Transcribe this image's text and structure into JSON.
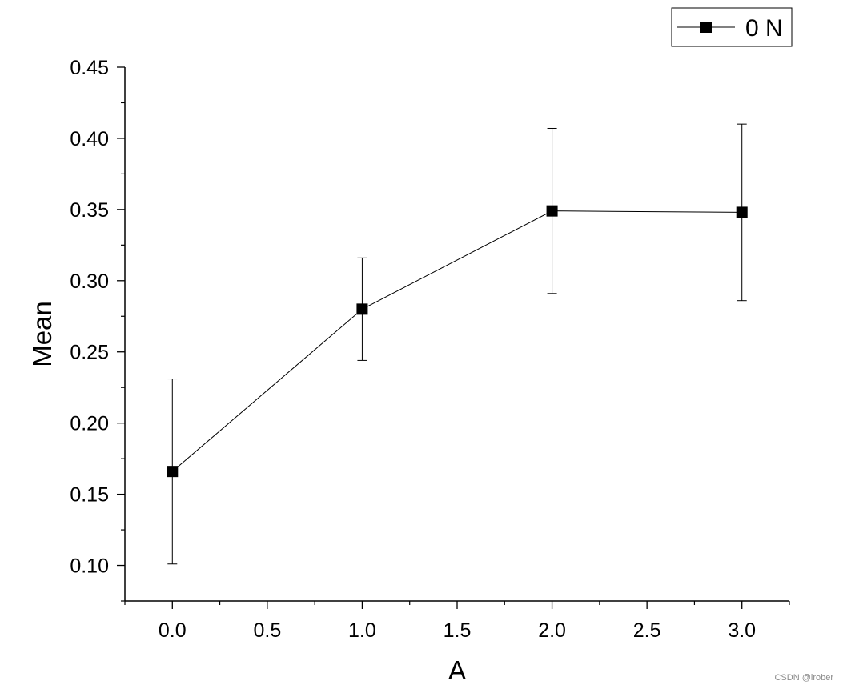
{
  "chart_data": {
    "type": "line",
    "title": "",
    "xlabel": "A",
    "ylabel": "Mean",
    "xlim": [
      -0.25,
      3.25
    ],
    "ylim": [
      0.075,
      0.45
    ],
    "x_ticks": [
      "0.0",
      "0.5",
      "1.0",
      "1.5",
      "2.0",
      "2.5",
      "3.0"
    ],
    "y_ticks": [
      "0.10",
      "0.15",
      "0.20",
      "0.25",
      "0.30",
      "0.35",
      "0.40",
      "0.45"
    ],
    "grid": false,
    "legend_position": "top-right",
    "series": [
      {
        "name": "0 N",
        "marker": "square",
        "color": "#000000",
        "x": [
          0.0,
          1.0,
          2.0,
          3.0
        ],
        "y": [
          0.166,
          0.28,
          0.349,
          0.348
        ],
        "error": [
          0.065,
          0.036,
          0.058,
          0.062
        ]
      }
    ]
  },
  "watermark": "CSDN @irober"
}
